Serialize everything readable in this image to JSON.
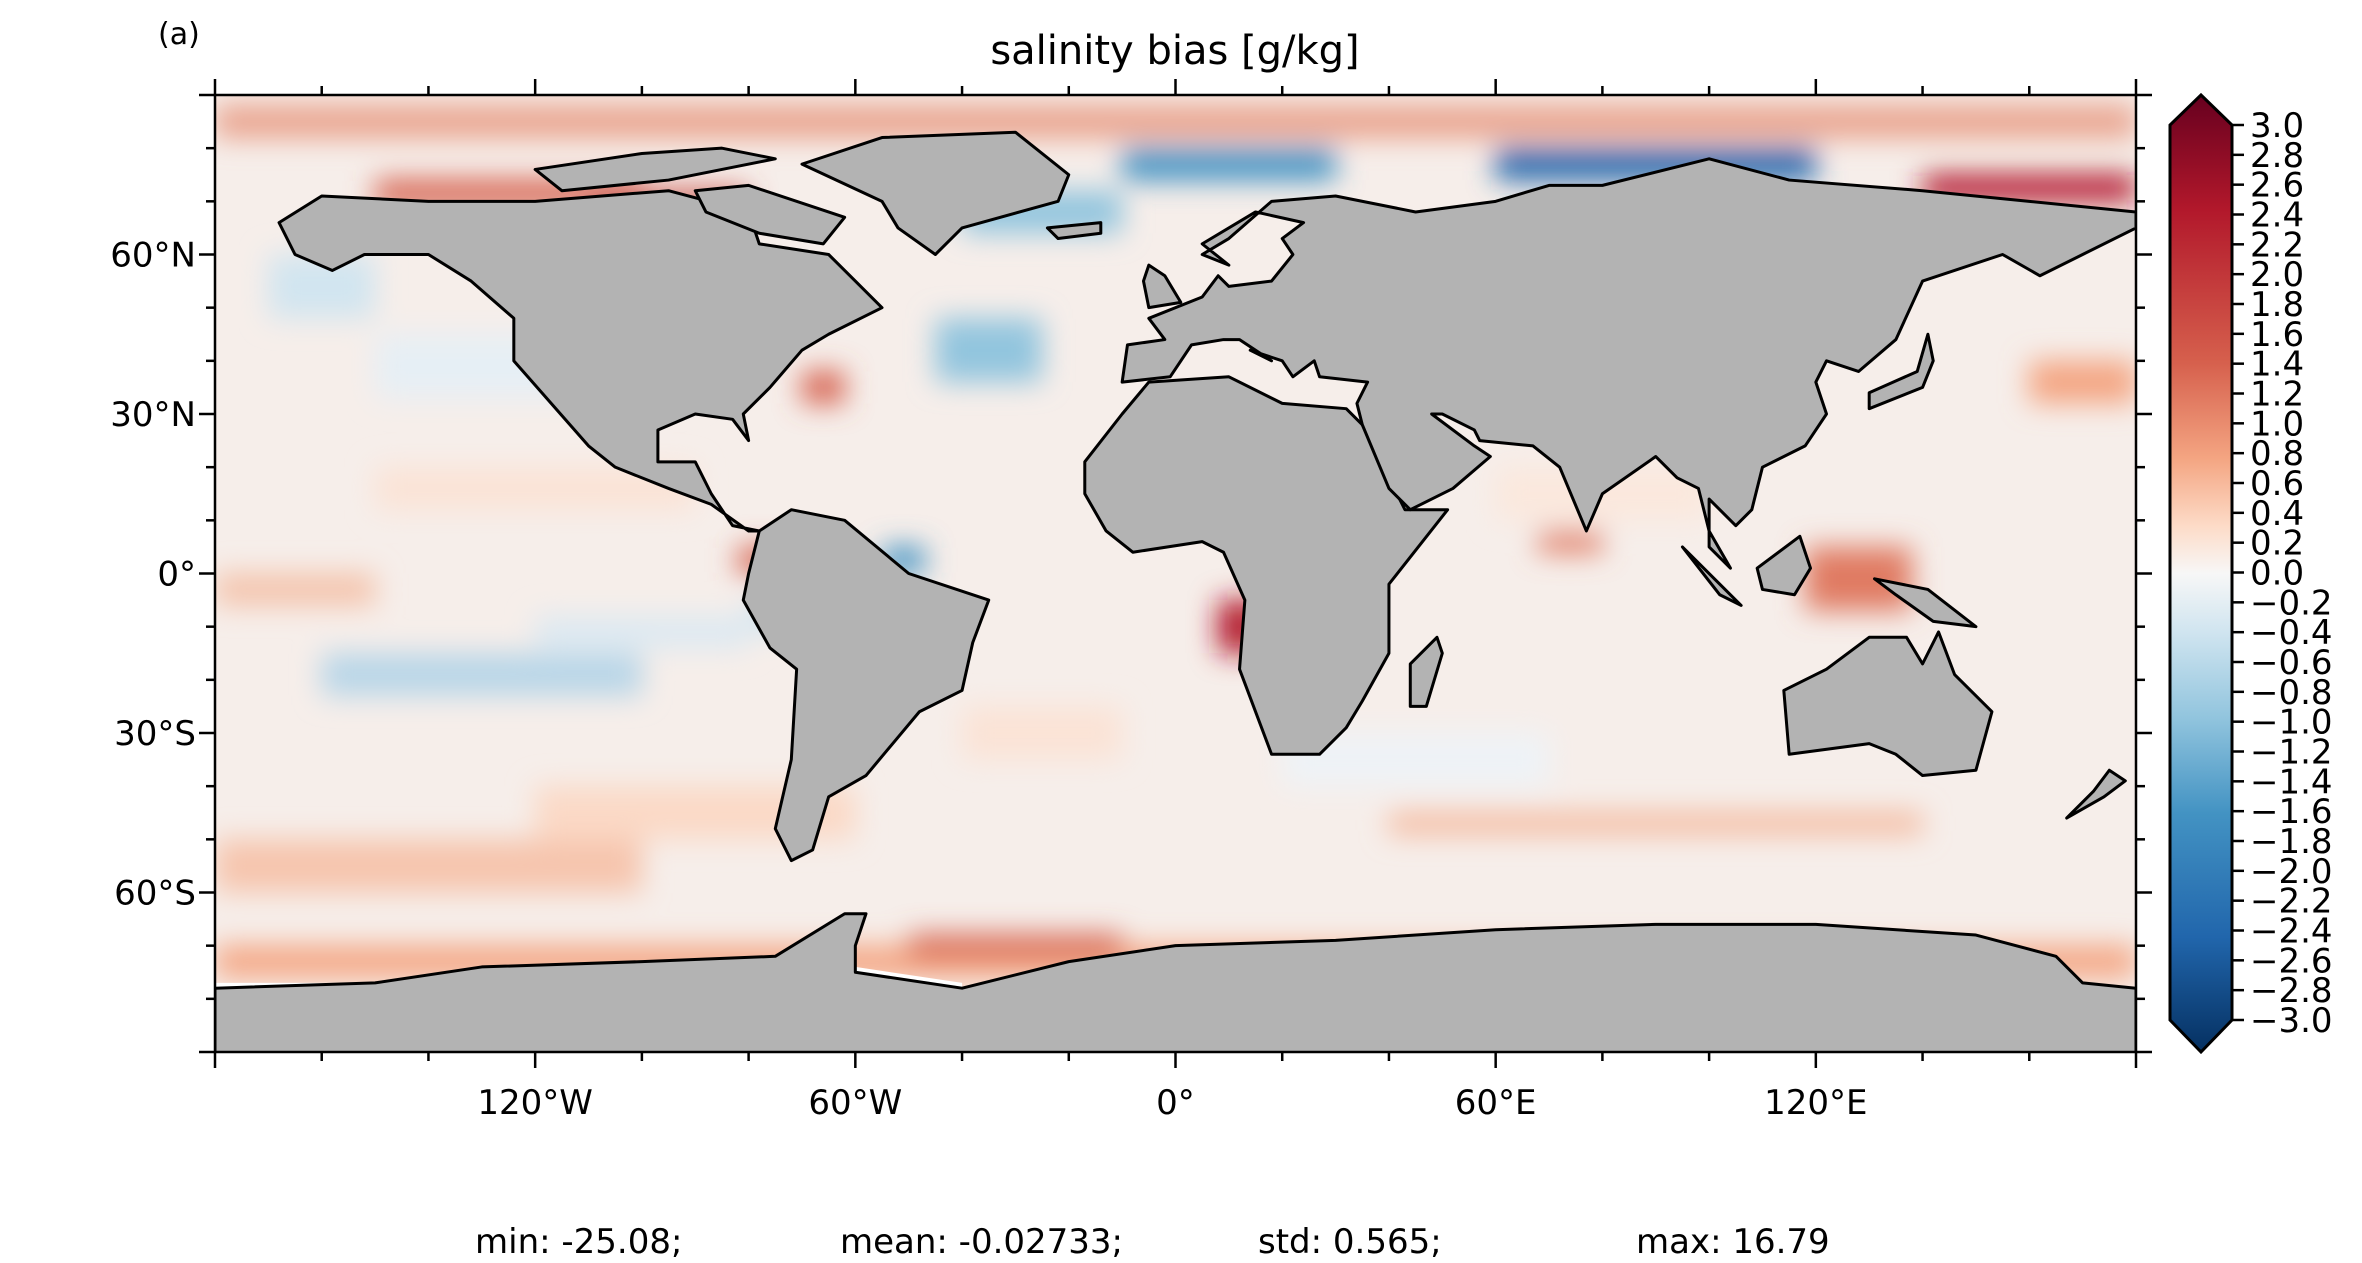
{
  "chart_data": {
    "type": "heatmap",
    "panel_label": "(a)",
    "title": "salinity bias [g/kg]",
    "projection": "equirectangular",
    "xlim": [
      -180,
      180
    ],
    "ylim": [
      -90,
      90
    ],
    "x_ticks": [
      {
        "value": -120,
        "label": "120°W"
      },
      {
        "value": -60,
        "label": "60°W"
      },
      {
        "value": 0,
        "label": "0°"
      },
      {
        "value": 60,
        "label": "60°E"
      },
      {
        "value": 120,
        "label": "120°E"
      }
    ],
    "y_ticks": [
      {
        "value": 60,
        "label": "60°N"
      },
      {
        "value": 30,
        "label": "30°N"
      },
      {
        "value": 0,
        "label": "0°"
      },
      {
        "value": -30,
        "label": "30°S"
      },
      {
        "value": -60,
        "label": "60°S"
      }
    ],
    "x_minor_step": 20,
    "y_minor_step": 10,
    "colorbar": {
      "colormap": "RdBu_r",
      "vmin": -3.0,
      "vmax": 3.0,
      "step": 0.2,
      "extend": "both",
      "tick_labels": [
        "3.0",
        "2.8",
        "2.6",
        "2.4",
        "2.2",
        "2.0",
        "1.8",
        "1.6",
        "1.4",
        "1.2",
        "1.0",
        "0.8",
        "0.6",
        "0.4",
        "0.2",
        "0.0",
        "−0.2",
        "−0.4",
        "−0.6",
        "−0.8",
        "−1.0",
        "−1.2",
        "−1.4",
        "−1.6",
        "−1.8",
        "−2.0",
        "−2.2",
        "−2.4",
        "−2.6",
        "−2.8",
        "−3.0"
      ]
    },
    "land_color": "#b3b3b3",
    "stats": {
      "min": "min: -25.08;",
      "mean": "mean: -0.02733;",
      "std": "std: 0.565;",
      "max": "max: 16.79"
    }
  }
}
